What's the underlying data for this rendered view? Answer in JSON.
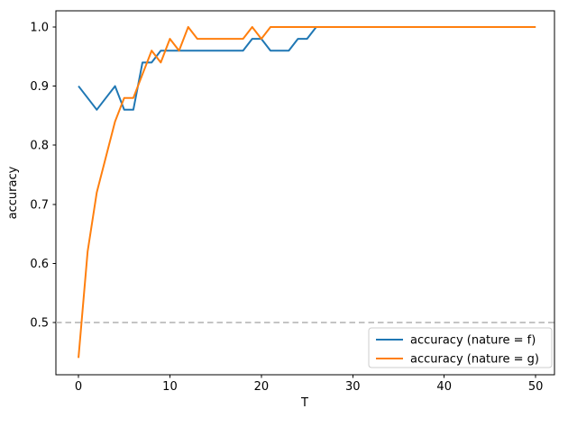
{
  "figure": {
    "background": "#ffffff",
    "axis_color": "#000000"
  },
  "chart_data": {
    "type": "line",
    "title": "",
    "xlabel": "T",
    "ylabel": "accuracy",
    "xlim": [
      -2.47,
      52.06
    ],
    "ylim": [
      0.4115,
      1.0274
    ],
    "x_ticks": [
      0,
      10,
      20,
      30,
      40,
      50
    ],
    "y_ticks": [
      0.5,
      0.6,
      0.7,
      0.8,
      0.9,
      1.0
    ],
    "grid": false,
    "legend_position": "lower right",
    "hline": {
      "y": 0.5,
      "style": "dashed",
      "color": "#b0b0b0"
    },
    "x": [
      0,
      1,
      2,
      3,
      4,
      5,
      6,
      7,
      8,
      9,
      10,
      11,
      12,
      13,
      14,
      15,
      16,
      17,
      18,
      19,
      20,
      21,
      22,
      23,
      24,
      25,
      26,
      27,
      28,
      29,
      30,
      31,
      32,
      33,
      34,
      35,
      36,
      37,
      38,
      39,
      40,
      41,
      42,
      43,
      44,
      45,
      46,
      47,
      48,
      49,
      50
    ],
    "series": [
      {
        "name": "accuracy (nature = f)",
        "color": "#1f77b4",
        "values": [
          0.9,
          0.88,
          0.86,
          0.88,
          0.9,
          0.86,
          0.86,
          0.94,
          0.94,
          0.96,
          0.96,
          0.96,
          0.96,
          0.96,
          0.96,
          0.96,
          0.96,
          0.96,
          0.96,
          0.98,
          0.98,
          0.96,
          0.96,
          0.96,
          0.98,
          0.98,
          1.0,
          1.0,
          1.0,
          1.0,
          1.0,
          1.0,
          1.0,
          1.0,
          1.0,
          1.0,
          1.0,
          1.0,
          1.0,
          1.0,
          1.0,
          1.0,
          1.0,
          1.0,
          1.0,
          1.0,
          1.0,
          1.0,
          1.0,
          1.0,
          1.0
        ]
      },
      {
        "name": "accuracy (nature = g)",
        "color": "#ff7f0e",
        "values": [
          0.44,
          0.62,
          0.72,
          0.78,
          0.84,
          0.88,
          0.88,
          0.92,
          0.96,
          0.94,
          0.98,
          0.96,
          1.0,
          0.98,
          0.98,
          0.98,
          0.98,
          0.98,
          0.98,
          1.0,
          0.98,
          1.0,
          1.0,
          1.0,
          1.0,
          1.0,
          1.0,
          1.0,
          1.0,
          1.0,
          1.0,
          1.0,
          1.0,
          1.0,
          1.0,
          1.0,
          1.0,
          1.0,
          1.0,
          1.0,
          1.0,
          1.0,
          1.0,
          1.0,
          1.0,
          1.0,
          1.0,
          1.0,
          1.0,
          1.0,
          1.0
        ]
      }
    ]
  }
}
